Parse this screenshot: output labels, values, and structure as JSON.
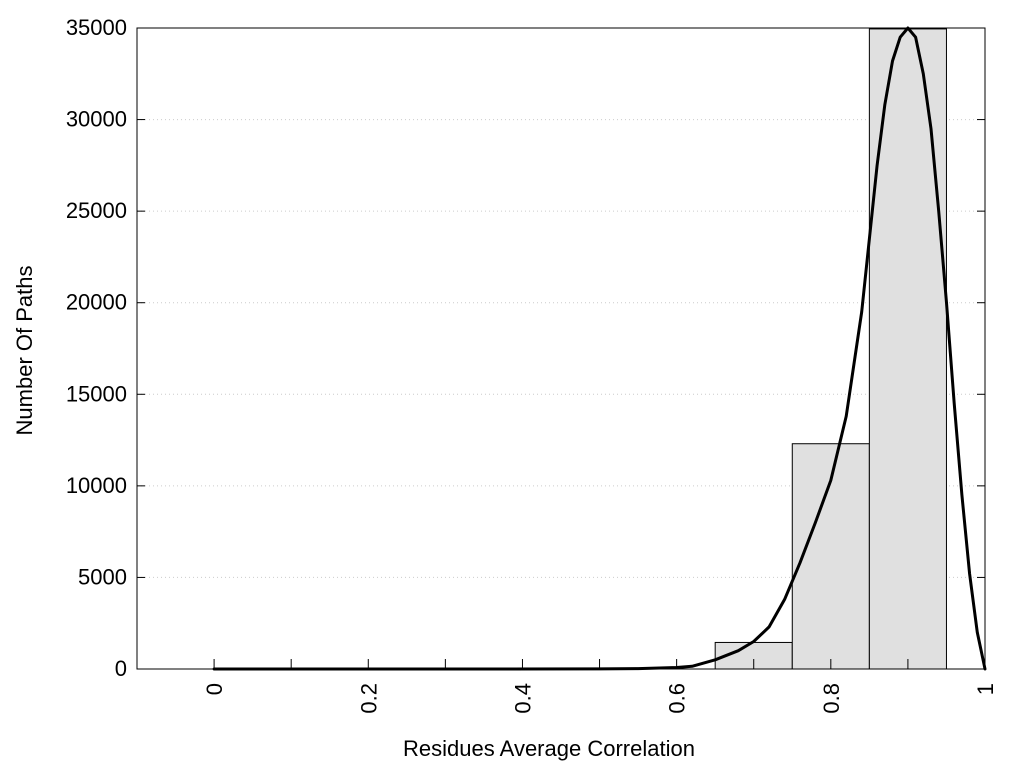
{
  "chart_data": {
    "type": "bar",
    "title": "",
    "xlabel": "Residues Average Correlation",
    "ylabel": "Number Of Paths",
    "xlim": [
      -0.1,
      1.0
    ],
    "ylim": [
      0,
      35000
    ],
    "grid": true,
    "x_ticks": [
      0,
      0.2,
      0.4,
      0.6,
      0.8,
      1
    ],
    "x_tick_labels": [
      "0",
      "0.2",
      "0.4",
      "0.6",
      "0.8",
      "1"
    ],
    "x_minor_ticks": [
      0.1,
      0.3,
      0.5,
      0.7,
      0.9
    ],
    "y_ticks": [
      0,
      5000,
      10000,
      15000,
      20000,
      25000,
      30000,
      35000
    ],
    "y_tick_labels": [
      "0",
      "5000",
      "10000",
      "15000",
      "20000",
      "25000",
      "30000",
      "35000"
    ],
    "bins": [
      {
        "x_start": 0.65,
        "x_end": 0.75,
        "value": 1450
      },
      {
        "x_start": 0.75,
        "x_end": 0.85,
        "value": 12300
      },
      {
        "x_start": 0.85,
        "x_end": 0.95,
        "value": 34950
      }
    ],
    "fit_curve": [
      [
        0.0,
        0
      ],
      [
        0.3,
        0
      ],
      [
        0.5,
        5
      ],
      [
        0.55,
        20
      ],
      [
        0.6,
        80
      ],
      [
        0.62,
        150
      ],
      [
        0.65,
        500
      ],
      [
        0.68,
        1000
      ],
      [
        0.7,
        1500
      ],
      [
        0.72,
        2300
      ],
      [
        0.74,
        3800
      ],
      [
        0.76,
        5800
      ],
      [
        0.78,
        8000
      ],
      [
        0.8,
        10300
      ],
      [
        0.82,
        13800
      ],
      [
        0.84,
        19500
      ],
      [
        0.85,
        23500
      ],
      [
        0.86,
        27500
      ],
      [
        0.87,
        30800
      ],
      [
        0.88,
        33200
      ],
      [
        0.89,
        34500
      ],
      [
        0.9,
        35000
      ],
      [
        0.91,
        34500
      ],
      [
        0.92,
        32500
      ],
      [
        0.93,
        29500
      ],
      [
        0.94,
        25000
      ],
      [
        0.95,
        20000
      ],
      [
        0.96,
        14500
      ],
      [
        0.97,
        9500
      ],
      [
        0.98,
        5200
      ],
      [
        0.99,
        2000
      ],
      [
        1.0,
        0
      ]
    ],
    "colors": {
      "bar_fill": "#e0e0e0",
      "bar_stroke": "#000000",
      "curve": "#000000",
      "grid": "#cccccc"
    }
  }
}
